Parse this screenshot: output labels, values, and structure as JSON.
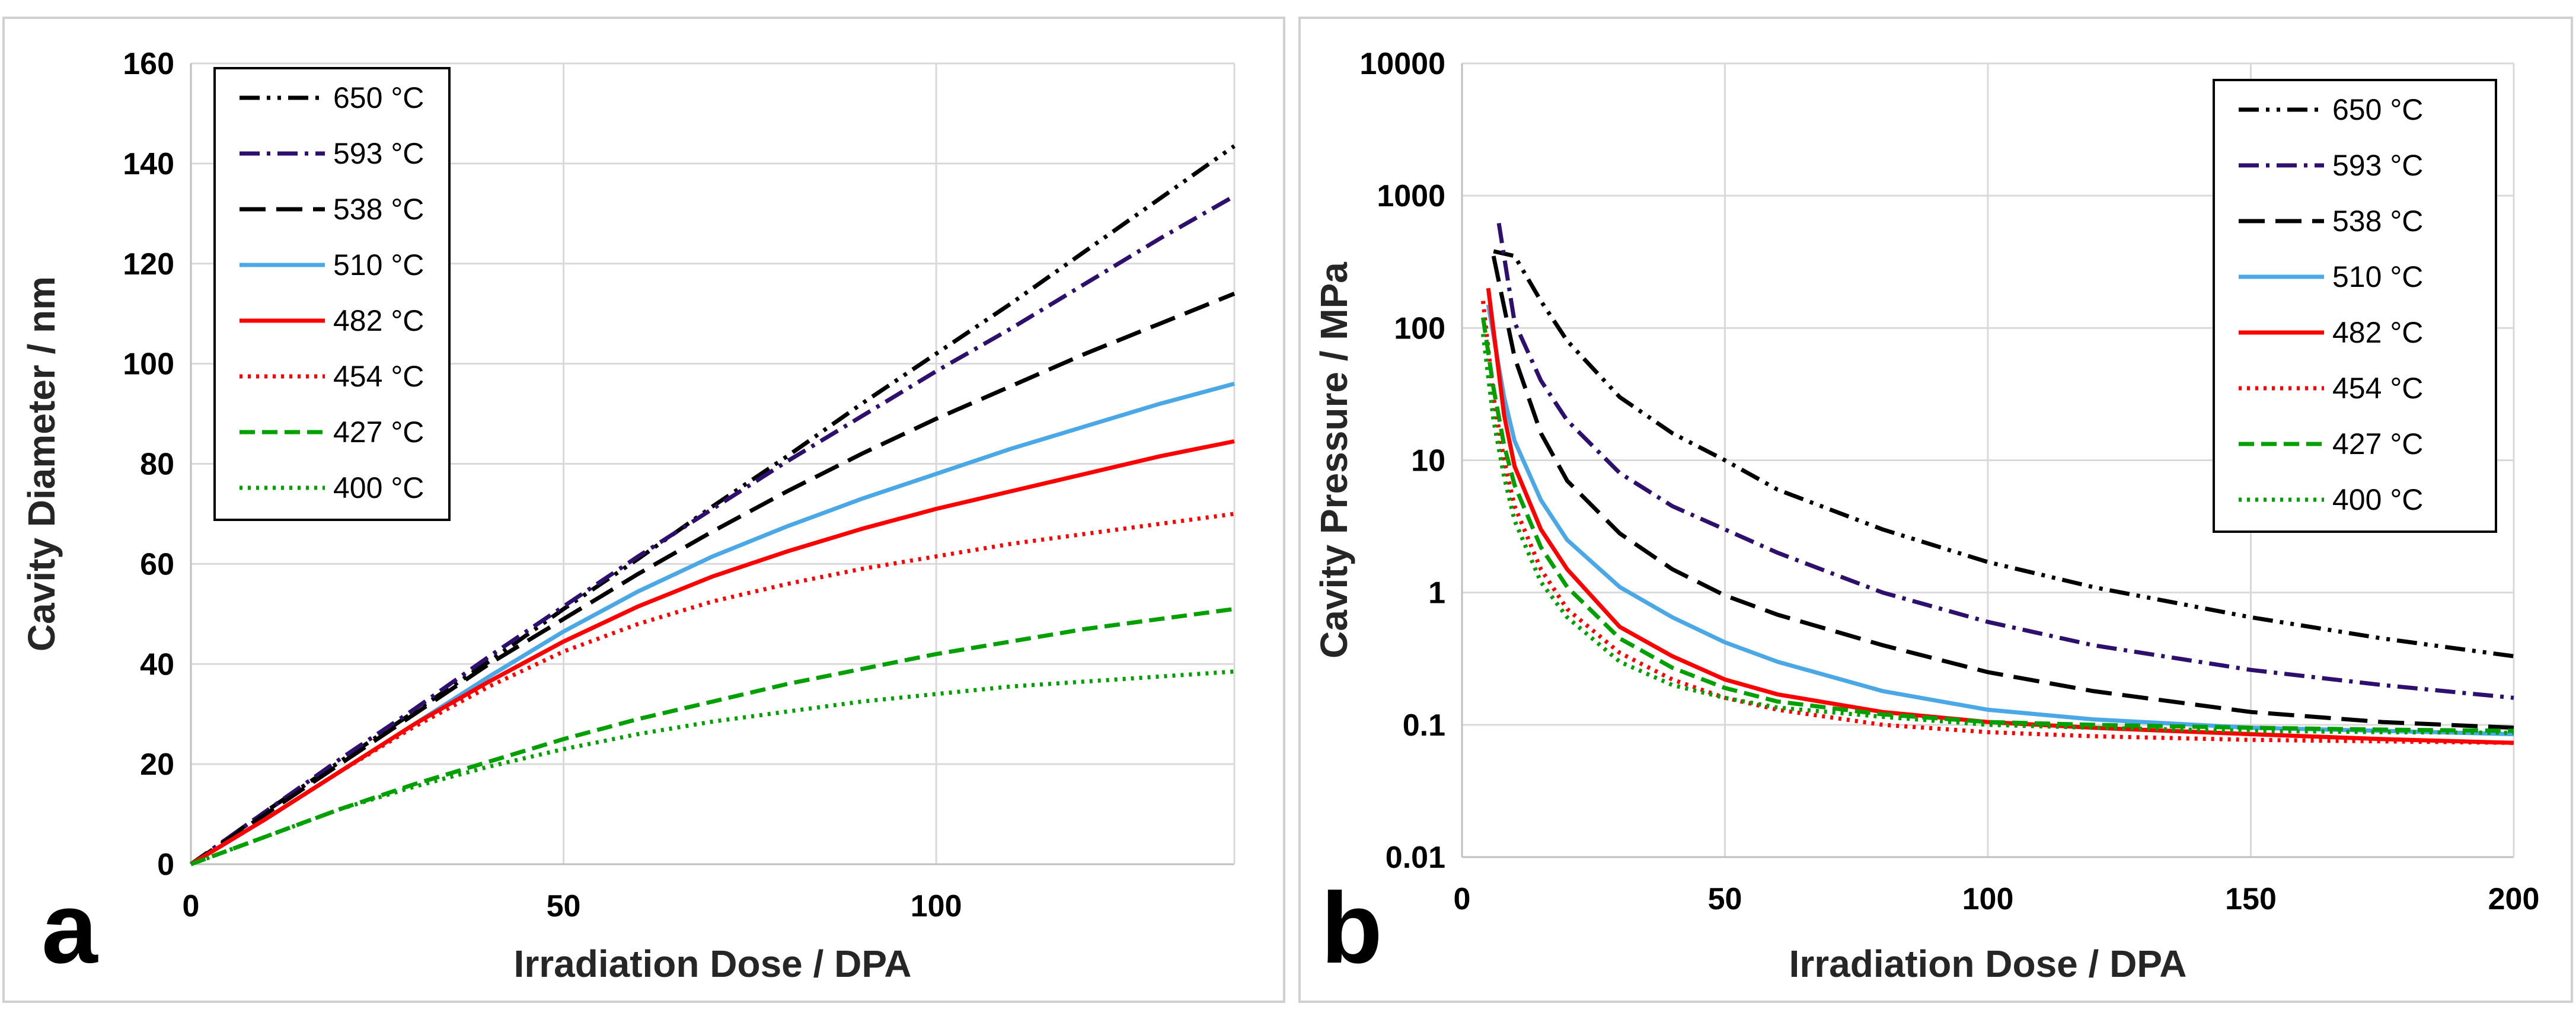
{
  "chart_data": [
    {
      "panel_label": "a",
      "type": "line",
      "xlabel": "Irradiation Dose / DPA",
      "ylabel": "Cavity Diameter / nm",
      "xlim": [
        0,
        140
      ],
      "ylim": [
        0,
        160
      ],
      "x_ticks": [
        "0",
        "50",
        "100"
      ],
      "x_tick_values": [
        0,
        50,
        100
      ],
      "y_ticks": [
        "0",
        "20",
        "40",
        "60",
        "80",
        "100",
        "120",
        "140",
        "160"
      ],
      "y_tick_values": [
        0,
        20,
        40,
        60,
        80,
        100,
        120,
        140,
        160
      ],
      "grid": true,
      "legend_position": "top-left",
      "x": [
        0,
        10,
        20,
        30,
        40,
        50,
        60,
        70,
        80,
        90,
        100,
        110,
        120,
        130,
        140
      ],
      "series": [
        {
          "name": "650 °C",
          "color": "#000000",
          "dash": "dashdotdot",
          "values": [
            0,
            10.5,
            20.5,
            30.5,
            40.5,
            51,
            61,
            71.5,
            81.5,
            92,
            102,
            112,
            122.5,
            133,
            143.5
          ]
        },
        {
          "name": "593 °C",
          "color": "#2e0f6e",
          "dash": "dashdot",
          "values": [
            0,
            10.5,
            21,
            31,
            41.5,
            51.5,
            61.5,
            71,
            80.5,
            89.5,
            98.5,
            107,
            116,
            125,
            133.5
          ]
        },
        {
          "name": "538 °C",
          "color": "#000000",
          "dash": "longdash",
          "values": [
            0,
            10,
            20,
            30,
            40,
            49,
            58,
            66.5,
            74.5,
            82,
            89,
            95.5,
            102,
            108,
            114
          ]
        },
        {
          "name": "510 °C",
          "color": "#4aa8e6",
          "dash": "solid",
          "values": [
            0,
            9,
            18.5,
            28,
            37.5,
            46.5,
            54.5,
            61.5,
            67.5,
            73,
            78,
            83,
            87.5,
            92,
            96
          ]
        },
        {
          "name": "482 °C",
          "color": "#ff0000",
          "dash": "solid",
          "values": [
            0,
            9,
            18.5,
            28,
            36.5,
            44.5,
            51.5,
            57.5,
            62.5,
            67,
            71,
            74.5,
            78,
            81.5,
            84.5
          ]
        },
        {
          "name": "454 °C",
          "color": "#ff0000",
          "dash": "dot",
          "values": [
            0,
            9,
            18.5,
            27.5,
            35.5,
            42.5,
            48,
            52.5,
            56,
            59,
            61.5,
            64,
            66,
            68,
            70
          ]
        },
        {
          "name": "427 °C",
          "color": "#00a000",
          "dash": "dash",
          "values": [
            0,
            5.5,
            11,
            16,
            20.5,
            25,
            29,
            32.5,
            36,
            39,
            42,
            44.5,
            47,
            49,
            51
          ]
        },
        {
          "name": "400 °C",
          "color": "#00a000",
          "dash": "dot",
          "values": [
            0,
            5.5,
            11,
            15.5,
            19.5,
            23,
            26,
            28.5,
            30.5,
            32.5,
            34,
            35.5,
            36.5,
            37.5,
            38.5
          ]
        }
      ]
    },
    {
      "panel_label": "b",
      "type": "line",
      "xlabel": "Irradiation Dose / DPA",
      "ylabel": "Cavity Pressure / MPa",
      "xlim": [
        0,
        200
      ],
      "ylim": [
        0.01,
        10000
      ],
      "y_scale": "log",
      "x_ticks": [
        "0",
        "50",
        "100",
        "150",
        "200"
      ],
      "x_tick_values": [
        0,
        50,
        100,
        150,
        200
      ],
      "y_ticks": [
        "0.01",
        "0.1",
        "1",
        "10",
        "100",
        "1000",
        "10000"
      ],
      "y_tick_values": [
        0.01,
        0.1,
        1,
        10,
        100,
        1000,
        10000
      ],
      "grid": true,
      "legend_position": "top-right",
      "series": [
        {
          "name": "650 °C",
          "color": "#000000",
          "dash": "dashdotdot",
          "x": [
            6,
            10,
            15,
            20,
            30,
            40,
            50,
            60,
            80,
            100,
            120,
            150,
            175,
            200
          ],
          "values": [
            380,
            350,
            160,
            80,
            30,
            16,
            10,
            6,
            3,
            1.7,
            1.1,
            0.65,
            0.45,
            0.33
          ]
        },
        {
          "name": "593 °C",
          "color": "#2e0f6e",
          "dash": "dashdot",
          "x": [
            7,
            10,
            15,
            20,
            30,
            40,
            50,
            60,
            80,
            100,
            120,
            150,
            175,
            200
          ],
          "values": [
            620,
            110,
            40,
            20,
            8,
            4.5,
            3,
            2,
            1,
            0.6,
            0.4,
            0.26,
            0.2,
            0.16
          ]
        },
        {
          "name": "538 °C",
          "color": "#000000",
          "dash": "longdash",
          "x": [
            6,
            10,
            15,
            20,
            30,
            40,
            50,
            60,
            80,
            100,
            120,
            150,
            175,
            200
          ],
          "values": [
            350,
            60,
            16,
            7,
            2.8,
            1.5,
            0.95,
            0.68,
            0.4,
            0.25,
            0.18,
            0.125,
            0.105,
            0.095
          ]
        },
        {
          "name": "510 °C",
          "color": "#4aa8e6",
          "dash": "solid",
          "x": [
            5,
            8,
            10,
            15,
            20,
            30,
            40,
            50,
            60,
            80,
            100,
            120,
            150,
            175,
            200
          ],
          "values": [
            150,
            30,
            14,
            5,
            2.5,
            1.1,
            0.65,
            0.42,
            0.3,
            0.18,
            0.13,
            0.11,
            0.095,
            0.09,
            0.085
          ]
        },
        {
          "name": "482 °C",
          "color": "#ff0000",
          "dash": "solid",
          "x": [
            5,
            8,
            10,
            15,
            20,
            30,
            40,
            50,
            60,
            80,
            100,
            120,
            150,
            175,
            200
          ],
          "values": [
            200,
            22,
            9,
            3,
            1.5,
            0.55,
            0.33,
            0.22,
            0.17,
            0.125,
            0.105,
            0.095,
            0.085,
            0.078,
            0.073
          ]
        },
        {
          "name": "454 °C",
          "color": "#ff0000",
          "dash": "dot",
          "x": [
            4,
            6,
            8,
            10,
            15,
            20,
            30,
            40,
            50,
            60,
            80,
            100,
            120,
            150,
            175,
            200
          ],
          "values": [
            160,
            30,
            10,
            4.5,
            1.5,
            0.75,
            0.35,
            0.22,
            0.16,
            0.13,
            0.1,
            0.088,
            0.082,
            0.077,
            0.075,
            0.073
          ]
        },
        {
          "name": "427 °C",
          "color": "#00a000",
          "dash": "dash",
          "x": [
            4,
            6,
            8,
            10,
            15,
            20,
            30,
            40,
            50,
            60,
            80,
            100,
            120,
            150,
            175,
            200
          ],
          "values": [
            120,
            35,
            13,
            6.5,
            2.2,
            1.1,
            0.45,
            0.27,
            0.19,
            0.15,
            0.12,
            0.105,
            0.1,
            0.095,
            0.092,
            0.09
          ]
        },
        {
          "name": "400 °C",
          "color": "#00a000",
          "dash": "dot",
          "x": [
            4,
            6,
            8,
            10,
            15,
            20,
            30,
            40,
            50,
            60,
            80,
            100,
            120,
            150,
            175,
            200
          ],
          "values": [
            90,
            20,
            7.5,
            3.5,
            1.2,
            0.65,
            0.3,
            0.2,
            0.16,
            0.135,
            0.115,
            0.1,
            0.095,
            0.09,
            0.088,
            0.087
          ]
        }
      ]
    }
  ]
}
